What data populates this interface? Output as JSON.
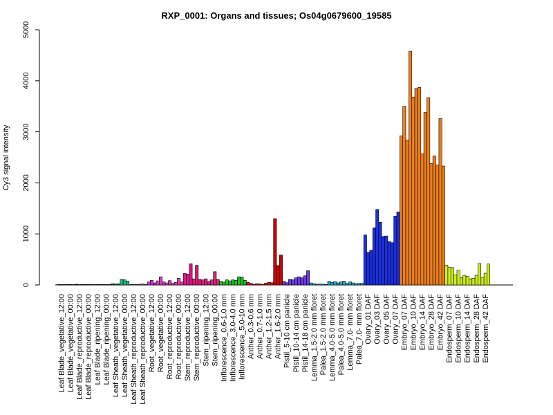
{
  "chart_data": {
    "type": "bar",
    "title": "RXP_0001: Organs and tissues; Os04g0679600_19585",
    "xlabel": "",
    "ylabel": "Cy3 signal intensity",
    "ylim": [
      0,
      5000
    ],
    "yticks": [
      0,
      1000,
      2000,
      3000,
      4000,
      5000
    ],
    "grid": false,
    "legend": "none",
    "categories": [
      "Leaf Blade_vegetative_12:00",
      "Leaf Blade_vegetative_00:00",
      "Leaf Blade_reproductive_12:00",
      "Leaf Blade_reproductive_00:00",
      "Leaf Blade_ripening_12:00",
      "Leaf Blade_ripening_00:00",
      "Leaf Sheath_vegetative_12:00",
      "Leaf Sheath_vegetative_00:00",
      "Leaf Sheath_reproductive_12:00",
      "Leaf Sheath_reproductive_00:00",
      "Root_vegetative_12:00",
      "Root_vegetative_00:00",
      "Root_reproductive_12:00",
      "Root_reproductive_00:00",
      "Stem_reproductive_12:00",
      "Stem_reproductive_00:00",
      "Stem_ripening_12:00",
      "Stem_ripening_00:00",
      "Inflorescence_0.6-1.0 mm",
      "Inflorescence_3.0-4.0 mm",
      "Inflorescence_5.0-10 mm",
      "Anther_0.3-0.6 mm",
      "Anther_0.7-1.0 mm",
      "Anther_1.2-1.5 mm",
      "Anther_1.6-2.0 mm",
      "Pistil_5-10 cm panicle",
      "Pistil_10-14 cm panicle",
      "Pistil_14-18 cm panicle",
      "Lemma_1.5-2.0 mm floret",
      "Palea_1.5-2.0 mm floret",
      "Lemma_4.0-5.0 mm floret",
      "Palea_4.0-5.0 mm floret",
      "Lemma_7.0- mm floret",
      "Palea_7.0- mm floret",
      "Ovary_01 DAF",
      "Ovary_03 DAF",
      "Ovary_05 DAF",
      "Ovary_07 DAF",
      "Embryo_07 DAF",
      "Embryo_10 DAF",
      "Embryo_14 DAF",
      "Embryo_28 DAF",
      "Embryo_42 DAF",
      "Endosperm_07 DAF",
      "Endosperm_10 DAF",
      "Endosperm_14 DAF",
      "Endosperm_28 DAF",
      "Endosperm_42 DAF"
    ],
    "groups": [
      {
        "color": "#0b0b0b",
        "values": [
          5,
          8,
          6
        ]
      },
      {
        "color": "#1e1e1e",
        "values": [
          7,
          9,
          6
        ]
      },
      {
        "color": "#2c2c2c",
        "values": [
          15,
          8,
          10
        ]
      },
      {
        "color": "#3a3a3a",
        "values": [
          9,
          12,
          8
        ]
      },
      {
        "color": "#474747",
        "values": [
          8,
          10,
          9
        ]
      },
      {
        "color": "#555555",
        "values": [
          10,
          9,
          12
        ]
      },
      {
        "color": "#1a6e3a",
        "values": [
          25,
          20,
          22
        ]
      },
      {
        "color": "#1fb87a",
        "values": [
          110,
          100,
          75
        ]
      },
      {
        "color": "#3a3a3a",
        "values": [
          6,
          8,
          5
        ]
      },
      {
        "color": "#6b6b6b",
        "values": [
          15,
          20,
          12
        ]
      },
      {
        "color": "#cc33cc",
        "values": [
          60,
          90,
          40
        ]
      },
      {
        "color": "#d23fbe",
        "values": [
          80,
          160,
          60
        ]
      },
      {
        "color": "#dd3bb0",
        "values": [
          40,
          85,
          30
        ]
      },
      {
        "color": "#e23faa",
        "values": [
          50,
          130,
          60
        ]
      },
      {
        "color": "#e0158a",
        "values": [
          225,
          210,
          415
        ]
      },
      {
        "color": "#e0157a",
        "values": [
          120,
          385,
          110
        ]
      },
      {
        "color": "#d8207a",
        "values": [
          100,
          120,
          70
        ]
      },
      {
        "color": "#cf2a7a",
        "values": [
          100,
          260,
          110
        ]
      },
      {
        "color": "#27c227",
        "values": [
          70,
          55,
          100
        ]
      },
      {
        "color": "#22bb22",
        "values": [
          80,
          100,
          90
        ]
      },
      {
        "color": "#1fbb1f",
        "values": [
          160,
          155,
          90
        ]
      },
      {
        "color": "#dd1010",
        "values": [
          50,
          30,
          15
        ]
      },
      {
        "color": "#dd1010",
        "values": [
          25,
          20,
          15
        ]
      },
      {
        "color": "#dd1010",
        "values": [
          35,
          50,
          45
        ]
      },
      {
        "color": "#cc0000",
        "values": [
          1300,
          380,
          585
        ]
      },
      {
        "color": "#6a3ae0",
        "values": [
          70,
          45,
          110
        ]
      },
      {
        "color": "#6a3ae0",
        "values": [
          100,
          140,
          160
        ]
      },
      {
        "color": "#6a3ae0",
        "values": [
          140,
          180,
          280
        ]
      },
      {
        "color": "#1aa6cc",
        "values": [
          40,
          25,
          15
        ]
      },
      {
        "color": "#1aa6cc",
        "values": [
          20,
          15,
          10
        ]
      },
      {
        "color": "#1aa6cc",
        "values": [
          70,
          50,
          65
        ]
      },
      {
        "color": "#1aa6cc",
        "values": [
          40,
          60,
          75
        ]
      },
      {
        "color": "#1aa6cc",
        "values": [
          30,
          60,
          40
        ]
      },
      {
        "color": "#1aa6cc",
        "values": [
          25,
          30,
          30
        ]
      },
      {
        "color": "#1a2fe0",
        "values": [
          980,
          640,
          680
        ]
      },
      {
        "color": "#1a2fe0",
        "values": [
          1120,
          1480,
          1230
        ]
      },
      {
        "color": "#1a2fe0",
        "values": [
          950,
          960,
          850
        ]
      },
      {
        "color": "#1a2fe0",
        "values": [
          830,
          1350,
          1430
        ]
      },
      {
        "color": "#ee7f1a",
        "values": [
          2920,
          3500,
          2840
        ]
      },
      {
        "color": "#ee7f1a",
        "values": [
          4580,
          3680,
          3850
        ]
      },
      {
        "color": "#ee7f1a",
        "values": [
          3870,
          2570,
          3380
        ]
      },
      {
        "color": "#ee7f1a",
        "values": [
          3670,
          2380,
          2530
        ]
      },
      {
        "color": "#ee7f1a",
        "values": [
          2350,
          3260,
          2330
        ]
      },
      {
        "color": "#ccee22",
        "values": [
          390,
          350,
          340
        ]
      },
      {
        "color": "#ccee22",
        "values": [
          200,
          290,
          140
        ]
      },
      {
        "color": "#ccee22",
        "values": [
          190,
          170,
          120
        ]
      },
      {
        "color": "#ccee22",
        "values": [
          130,
          190,
          420
        ]
      },
      {
        "color": "#ccee22",
        "values": [
          150,
          230,
          410
        ]
      }
    ]
  }
}
